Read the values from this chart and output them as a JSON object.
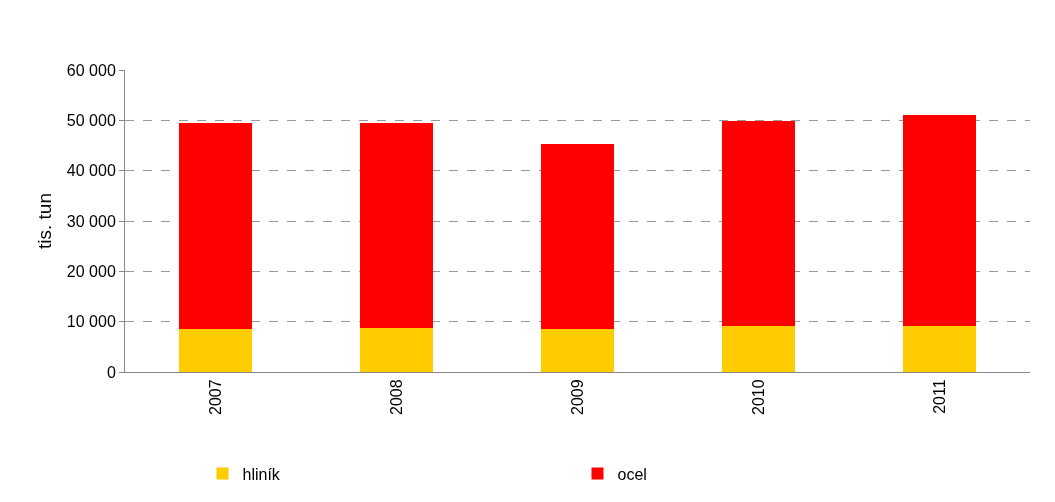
{
  "chart_data": {
    "type": "bar",
    "stacked": true,
    "categories": [
      "2007",
      "2008",
      "2009",
      "2010",
      "2011"
    ],
    "series": [
      {
        "name": "hliník",
        "color": "#ffcc00",
        "values": [
          8500,
          8700,
          8500,
          9100,
          9100
        ]
      },
      {
        "name": "ocel",
        "color": "#ff0000",
        "values": [
          41000,
          40800,
          36800,
          40700,
          42000
        ]
      }
    ],
    "ylabel": "tis. tun",
    "ylim": [
      0,
      60000
    ],
    "yticks": [
      0,
      {
        "value": 10000,
        "label": "10 000"
      },
      {
        "value": 20000,
        "label": "20 000"
      },
      {
        "value": 30000,
        "label": "30 000"
      },
      {
        "value": 40000,
        "label": "40 000"
      },
      {
        "value": 50000,
        "label": "50 000"
      },
      {
        "value": 60000,
        "label": "60 000"
      }
    ],
    "grid": "y",
    "legend": "bottom"
  }
}
